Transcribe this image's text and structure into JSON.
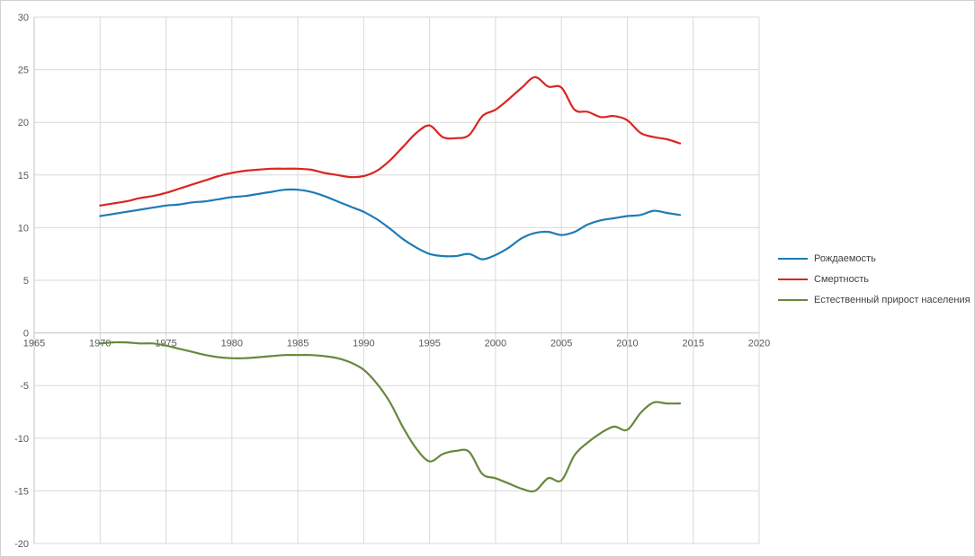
{
  "chart_data": {
    "type": "line",
    "title": "",
    "xlabel": "",
    "ylabel": "",
    "xlim": [
      1965,
      2020
    ],
    "xtick_step": 5,
    "ylim": [
      -20,
      30
    ],
    "ytick_step": 5,
    "grid": true,
    "smoothed": true,
    "legend_position": "right",
    "x": [
      1970,
      1971,
      1972,
      1973,
      1974,
      1975,
      1976,
      1977,
      1978,
      1979,
      1980,
      1981,
      1982,
      1983,
      1984,
      1985,
      1986,
      1987,
      1988,
      1989,
      1990,
      1991,
      1992,
      1993,
      1994,
      1995,
      1996,
      1997,
      1998,
      1999,
      2000,
      2001,
      2002,
      2003,
      2004,
      2005,
      2006,
      2007,
      2008,
      2009,
      2010,
      2011,
      2012,
      2013,
      2014
    ],
    "series": [
      {
        "name": "Рождаемость",
        "color": "#1F7BB6",
        "values": [
          11.1,
          11.3,
          11.5,
          11.7,
          11.9,
          12.1,
          12.2,
          12.4,
          12.5,
          12.7,
          12.9,
          13.0,
          13.2,
          13.4,
          13.6,
          13.6,
          13.4,
          13.0,
          12.5,
          12.0,
          11.5,
          10.8,
          9.9,
          8.9,
          8.1,
          7.5,
          7.3,
          7.3,
          7.5,
          7.0,
          7.4,
          8.1,
          9.0,
          9.5,
          9.6,
          9.3,
          9.6,
          10.3,
          10.7,
          10.9,
          11.1,
          11.2,
          11.6,
          11.4,
          11.2
        ]
      },
      {
        "name": "Смертность",
        "color": "#DB2521",
        "values": [
          12.1,
          12.3,
          12.5,
          12.8,
          13.0,
          13.3,
          13.7,
          14.1,
          14.5,
          14.9,
          15.2,
          15.4,
          15.5,
          15.6,
          15.6,
          15.6,
          15.5,
          15.2,
          15.0,
          14.8,
          14.9,
          15.4,
          16.4,
          17.7,
          19.0,
          19.7,
          18.6,
          18.5,
          18.8,
          20.6,
          21.2,
          22.2,
          23.3,
          24.3,
          23.4,
          23.3,
          21.2,
          21.0,
          20.5,
          20.6,
          20.2,
          19.0,
          18.6,
          18.4,
          18.0
        ]
      },
      {
        "name": "Естественный прирост населения",
        "color": "#67883D",
        "values": [
          -1.0,
          -0.9,
          -0.9,
          -1.0,
          -1.0,
          -1.2,
          -1.5,
          -1.8,
          -2.1,
          -2.3,
          -2.4,
          -2.4,
          -2.3,
          -2.2,
          -2.1,
          -2.1,
          -2.1,
          -2.2,
          -2.4,
          -2.8,
          -3.5,
          -4.8,
          -6.6,
          -9.0,
          -11.0,
          -12.2,
          -11.5,
          -11.2,
          -11.3,
          -13.4,
          -13.8,
          -14.3,
          -14.8,
          -15.0,
          -13.8,
          -14.0,
          -11.6,
          -10.4,
          -9.5,
          -8.9,
          -9.2,
          -7.6,
          -6.6,
          -6.7,
          -6.7
        ]
      }
    ],
    "x_tick_labels": [
      "1965",
      "1970",
      "1975",
      "1980",
      "1985",
      "1990",
      "1995",
      "2000",
      "2005",
      "2010",
      "2015",
      "2020"
    ],
    "y_tick_labels": [
      "-20",
      "-15",
      "-10",
      "-5",
      "0",
      "5",
      "10",
      "15",
      "20",
      "25",
      "30"
    ]
  },
  "style_colors": {
    "gridline": "#D9D9D9",
    "axis_line": "#C3C3C3",
    "tick_label": "#595959",
    "legend_text": "#404040"
  }
}
